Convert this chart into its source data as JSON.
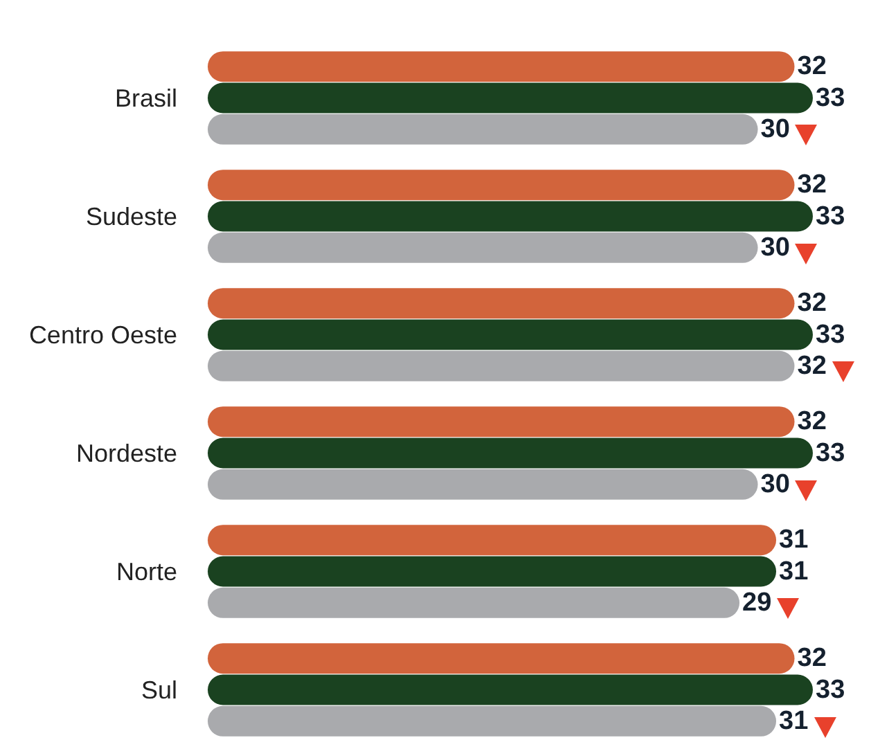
{
  "chart_data": {
    "type": "bar",
    "orientation": "horizontal",
    "categories": [
      "Brasil",
      "Sudeste",
      "Centro Oeste",
      "Nordeste",
      "Norte",
      "Sul"
    ],
    "series": [
      {
        "color": "#d2643c",
        "values": [
          32,
          32,
          32,
          32,
          31,
          32
        ]
      },
      {
        "color": "#1a4220",
        "values": [
          33,
          33,
          33,
          33,
          31,
          33
        ]
      },
      {
        "color": "#a9aaad",
        "values": [
          30,
          30,
          32,
          30,
          29,
          31
        ]
      }
    ],
    "data_labels": true
  }
}
